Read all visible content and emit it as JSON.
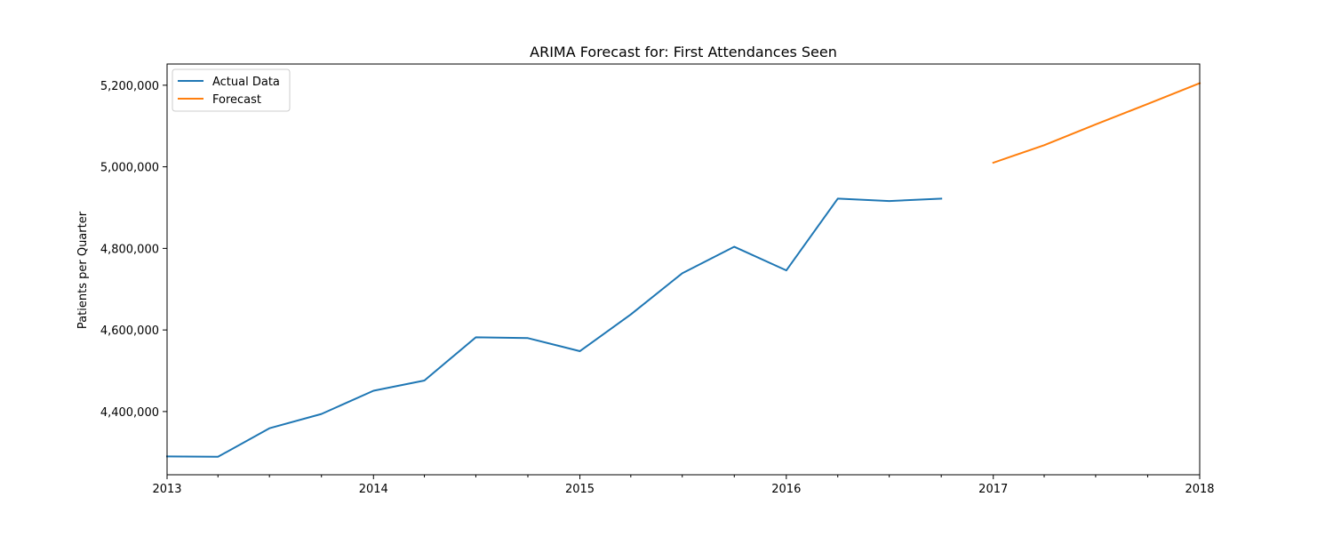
{
  "chart_data": {
    "type": "line",
    "title": "ARIMA Forecast for: First Attendances Seen",
    "xlabel": "",
    "ylabel": "Patients per Quarter",
    "xlim": [
      "2013-01-01",
      "2018-01-01"
    ],
    "ylim": [
      4245000,
      5252000
    ],
    "x_ticks": [
      {
        "date": "2013-01-01",
        "label": "2013"
      },
      {
        "date": "2014-01-01",
        "label": "2014"
      },
      {
        "date": "2015-01-01",
        "label": "2015"
      },
      {
        "date": "2016-01-01",
        "label": "2016"
      },
      {
        "date": "2017-01-01",
        "label": "2017"
      },
      {
        "date": "2018-01-01",
        "label": "2018"
      }
    ],
    "x_minor_ticks": [
      "2013-04-01",
      "2013-07-01",
      "2013-10-01",
      "2014-04-01",
      "2014-07-01",
      "2014-10-01",
      "2015-04-01",
      "2015-07-01",
      "2015-10-01",
      "2016-04-01",
      "2016-07-01",
      "2016-10-01",
      "2017-04-01",
      "2017-07-01",
      "2017-10-01"
    ],
    "y_ticks": [
      {
        "value": 4400000,
        "label": "4,400,000"
      },
      {
        "value": 4600000,
        "label": "4,600,000"
      },
      {
        "value": 4800000,
        "label": "4,800,000"
      },
      {
        "value": 5000000,
        "label": "5,000,000"
      },
      {
        "value": 5200000,
        "label": "5,200,000"
      }
    ],
    "grid": false,
    "legend_position": "top-left",
    "series": [
      {
        "name": "Actual Data",
        "color": "#1f77b4",
        "points": [
          {
            "x": "2013-01-01",
            "y": 4290000
          },
          {
            "x": "2013-04-01",
            "y": 4289000
          },
          {
            "x": "2013-07-01",
            "y": 4359000
          },
          {
            "x": "2013-10-01",
            "y": 4394000
          },
          {
            "x": "2014-01-01",
            "y": 4451000
          },
          {
            "x": "2014-04-01",
            "y": 4476000
          },
          {
            "x": "2014-07-01",
            "y": 4582000
          },
          {
            "x": "2014-10-01",
            "y": 4580000
          },
          {
            "x": "2015-01-01",
            "y": 4548000
          },
          {
            "x": "2015-04-01",
            "y": 4638000
          },
          {
            "x": "2015-07-01",
            "y": 4739000
          },
          {
            "x": "2015-10-01",
            "y": 4804000
          },
          {
            "x": "2016-01-01",
            "y": 4746000
          },
          {
            "x": "2016-04-01",
            "y": 4922000
          },
          {
            "x": "2016-07-01",
            "y": 4916000
          },
          {
            "x": "2016-10-01",
            "y": 4922000
          }
        ]
      },
      {
        "name": "Forecast",
        "color": "#ff7f0e",
        "points": [
          {
            "x": "2017-01-01",
            "y": 5010000
          },
          {
            "x": "2017-04-01",
            "y": 5053000
          },
          {
            "x": "2017-07-01",
            "y": 5104000
          },
          {
            "x": "2017-10-01",
            "y": 5154000
          },
          {
            "x": "2018-01-01",
            "y": 5205000
          }
        ]
      }
    ]
  }
}
